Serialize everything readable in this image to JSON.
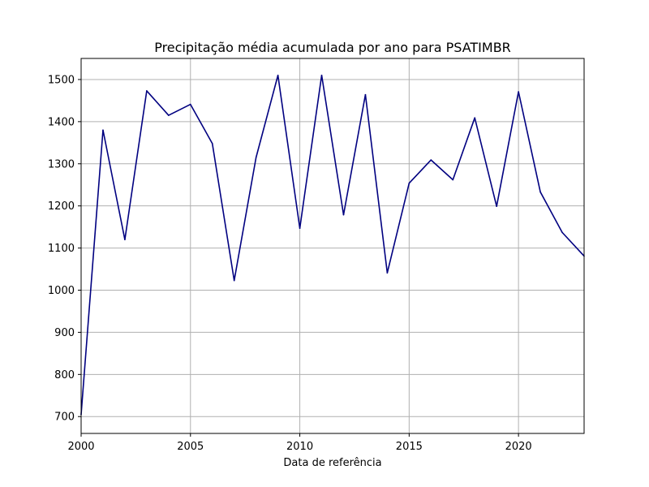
{
  "chart_data": {
    "type": "line",
    "title": "Precipitação média acumulada por ano para PSATIMBR",
    "xlabel": "Data de referência",
    "ylabel": "",
    "xlim": [
      2000,
      2023
    ],
    "ylim": [
      660,
      1550
    ],
    "x_ticks": [
      2000,
      2005,
      2010,
      2015,
      2020
    ],
    "y_ticks": [
      700,
      800,
      900,
      1000,
      1100,
      1200,
      1300,
      1400,
      1500
    ],
    "grid": true,
    "series": [
      {
        "color": "#000080",
        "x": [
          2000,
          2001,
          2002,
          2003,
          2004,
          2005,
          2006,
          2007,
          2008,
          2009,
          2010,
          2011,
          2012,
          2013,
          2014,
          2015,
          2016,
          2017,
          2018,
          2019,
          2020,
          2021,
          2022,
          2023
        ],
        "y": [
          705,
          1380,
          1120,
          1473,
          1415,
          1441,
          1348,
          1023,
          1315,
          1510,
          1147,
          1510,
          1179,
          1464,
          1041,
          1254,
          1309,
          1262,
          1409,
          1199,
          1471,
          1233,
          1137,
          1081
        ]
      }
    ]
  }
}
